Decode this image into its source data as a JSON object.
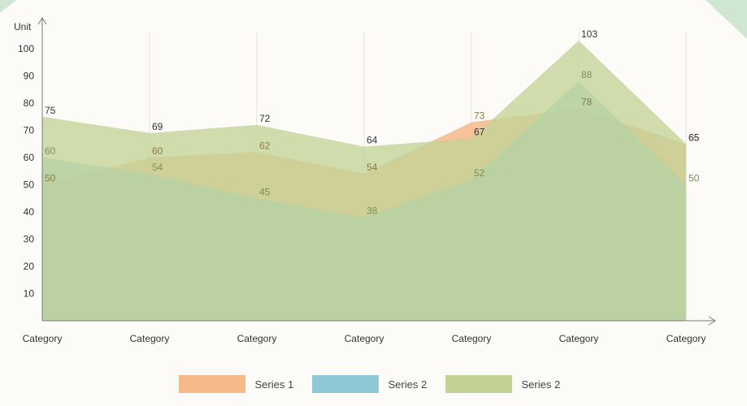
{
  "colors": {
    "background": "#fdfbf8",
    "axis": "#7a7a7a",
    "grid": "#e6e3dc",
    "corner_accent": "#cfe6d3"
  },
  "chart_data": {
    "type": "area",
    "title": "",
    "ylabel": "Unit",
    "xlabel": "",
    "ylim": [
      0,
      110
    ],
    "yticks": [
      10,
      20,
      30,
      40,
      50,
      60,
      70,
      80,
      90,
      100
    ],
    "categories": [
      "Category",
      "Category",
      "Category",
      "Category",
      "Category",
      "Category",
      "Category"
    ],
    "grid": "vertical",
    "legend_position": "bottom",
    "series": [
      {
        "name": "Series 1",
        "values": [
          50,
          60,
          62,
          54,
          73,
          78,
          65
        ],
        "color": "#f5b98a",
        "label_color": "#8a7a45"
      },
      {
        "name": "Series 2",
        "values": [
          60,
          54,
          45,
          38,
          52,
          88,
          50
        ],
        "color": "#8fc9d6",
        "label_color": "#7b8f5a"
      },
      {
        "name": "Series 2",
        "values": [
          75,
          69,
          72,
          64,
          67,
          103,
          65
        ],
        "color": "#c3d396",
        "label_color": "#333333"
      }
    ]
  }
}
